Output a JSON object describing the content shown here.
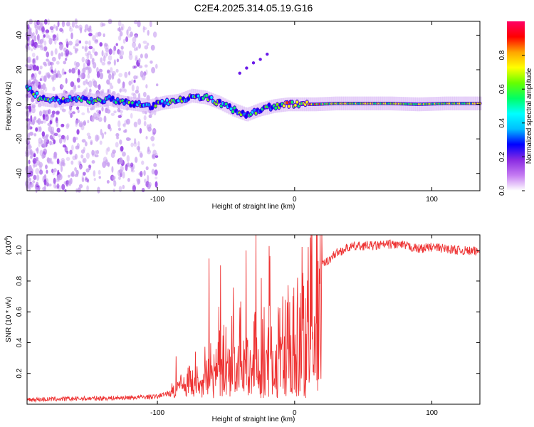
{
  "title": "C2E4.2025.314.05.19.G16",
  "chart_data": [
    {
      "type": "heatmap",
      "name": "spectrogram",
      "xlabel": "Height of straight line (km)",
      "ylabel": "Frequency (Hz)",
      "xlim": [
        -195,
        135
      ],
      "ylim": [
        -50,
        48
      ],
      "xticks": [
        -100,
        0,
        100
      ],
      "xtick_labels": [
        "-100",
        "0",
        "100"
      ],
      "yticks": [
        -40,
        -20,
        0,
        20,
        40
      ],
      "ytick_labels": [
        "-40",
        "-20",
        "0",
        "20",
        "40"
      ],
      "ridge": [
        {
          "x": -195,
          "y": 10
        },
        {
          "x": -185,
          "y": 3
        },
        {
          "x": -175,
          "y": 2
        },
        {
          "x": -165,
          "y": 3
        },
        {
          "x": -155,
          "y": 3
        },
        {
          "x": -145,
          "y": 2
        },
        {
          "x": -135,
          "y": 3
        },
        {
          "x": -125,
          "y": 1
        },
        {
          "x": -115,
          "y": 0
        },
        {
          "x": -105,
          "y": -1
        },
        {
          "x": -95,
          "y": 1
        },
        {
          "x": -85,
          "y": 2
        },
        {
          "x": -75,
          "y": 5
        },
        {
          "x": -65,
          "y": 4
        },
        {
          "x": -55,
          "y": 1
        },
        {
          "x": -45,
          "y": -3
        },
        {
          "x": -35,
          "y": -6
        },
        {
          "x": -25,
          "y": -3
        },
        {
          "x": -15,
          "y": -1
        },
        {
          "x": -5,
          "y": 0
        },
        {
          "x": 5,
          "y": 0
        },
        {
          "x": 15,
          "y": 0
        },
        {
          "x": 30,
          "y": 0.5
        },
        {
          "x": 50,
          "y": 0.5
        },
        {
          "x": 70,
          "y": 0.5
        },
        {
          "x": 90,
          "y": 0
        },
        {
          "x": 110,
          "y": 0.5
        },
        {
          "x": 135,
          "y": 0.5
        }
      ],
      "branch": [
        {
          "x": -40,
          "y": 18
        },
        {
          "x": -35,
          "y": 21
        },
        {
          "x": -30,
          "y": 24
        },
        {
          "x": -25,
          "y": 26
        },
        {
          "x": -20,
          "y": 29
        }
      ]
    },
    {
      "type": "colorbar",
      "label": "Normalized spectral amplitude",
      "ticks": [
        0.0,
        0.2,
        0.4,
        0.6,
        0.8
      ],
      "tick_labels": [
        "0.0",
        "0.2",
        "0.4",
        "0.6",
        "0.8"
      ],
      "range": [
        0,
        1
      ],
      "colors": [
        "#ffffff",
        "#c57bf2",
        "#8a2be2",
        "#0000ff",
        "#00bfff",
        "#00ffff",
        "#00ff66",
        "#66ff00",
        "#ffff00",
        "#ffa500",
        "#ff0000",
        "#ff0066"
      ]
    },
    {
      "type": "line",
      "name": "snr",
      "xlabel": "Height of straight line (km)",
      "ylabel": "SNR (10 * v/v)",
      "multiplier_label": "(x10",
      "multiplier_exp": "4",
      "multiplier_close": ")",
      "xlim": [
        -195,
        135
      ],
      "ylim": [
        0.0,
        1.1
      ],
      "xticks": [
        -100,
        0,
        100
      ],
      "xtick_labels": [
        "-100",
        "0",
        "100"
      ],
      "yticks": [
        0.2,
        0.4,
        0.6,
        0.8,
        1.0
      ],
      "ytick_labels": [
        "0.2",
        "0.4",
        "0.6",
        "0.8",
        "1.0"
      ],
      "line_color": "#ee3333",
      "envelope": [
        {
          "x": -195,
          "y": 0.03
        },
        {
          "x": -130,
          "y": 0.04
        },
        {
          "x": -100,
          "y": 0.05
        },
        {
          "x": -90,
          "y": 0.08
        },
        {
          "x": -80,
          "y": 0.18
        },
        {
          "x": -70,
          "y": 0.25
        },
        {
          "x": -60,
          "y": 0.3
        },
        {
          "x": -50,
          "y": 0.36
        },
        {
          "x": -40,
          "y": 0.42
        },
        {
          "x": -30,
          "y": 0.4
        },
        {
          "x": -20,
          "y": 0.45
        },
        {
          "x": -10,
          "y": 0.5
        },
        {
          "x": 0,
          "y": 0.62
        },
        {
          "x": 10,
          "y": 0.78
        },
        {
          "x": 20,
          "y": 0.9
        },
        {
          "x": 30,
          "y": 0.98
        },
        {
          "x": 40,
          "y": 1.02
        },
        {
          "x": 50,
          "y": 1.03
        },
        {
          "x": 60,
          "y": 1.03
        },
        {
          "x": 70,
          "y": 1.04
        },
        {
          "x": 80,
          "y": 1.03
        },
        {
          "x": 90,
          "y": 1.01
        },
        {
          "x": 100,
          "y": 1.02
        },
        {
          "x": 110,
          "y": 1.01
        },
        {
          "x": 120,
          "y": 1.0
        },
        {
          "x": 135,
          "y": 0.99
        }
      ]
    }
  ]
}
